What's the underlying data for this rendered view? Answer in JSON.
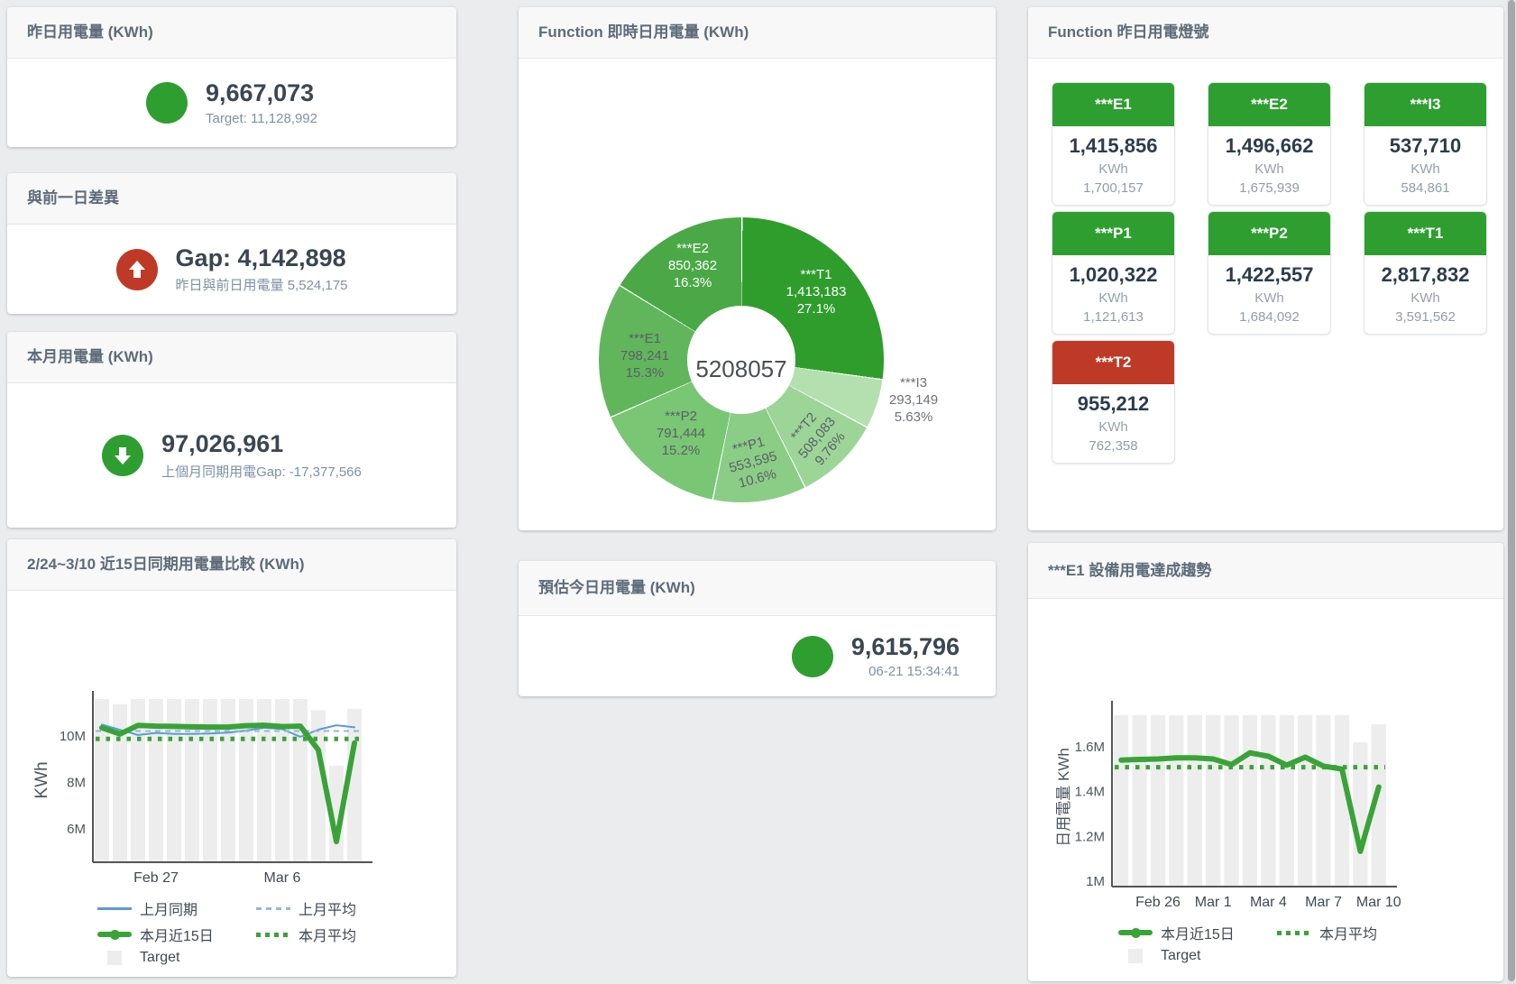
{
  "colors": {
    "green": "#2f9e31",
    "red": "#bf3a26",
    "line_green": "#3aa338",
    "line_blue": "#5b9bd5",
    "line_blue_light": "#8fb8dc",
    "target_bar": "#ededed"
  },
  "cards": {
    "yesterday": {
      "title": "昨日用電量 (KWh)",
      "value": "9,667,073",
      "sub": "Target: 11,128,992",
      "indicator": "green-circle"
    },
    "gap": {
      "title": "與前一日差異",
      "value": "Gap: 4,142,898",
      "sub": "昨日與前日用電量 5,524,175",
      "indicator": "red-up-arrow"
    },
    "month": {
      "title": "本月用電量 (KWh)",
      "value": "97,026,961",
      "sub": "上個月同期用電Gap: -17,377,566",
      "indicator": "green-down-arrow"
    },
    "realtime": {
      "title": "Function 即時日用電量 (KWh)"
    },
    "lamp": {
      "title": "Function 昨日用電燈號",
      "tiles": [
        {
          "name": "***E1",
          "value": "1,415,856",
          "unit": "KWh",
          "prev": "1,700,157",
          "status": "green"
        },
        {
          "name": "***E2",
          "value": "1,496,662",
          "unit": "KWh",
          "prev": "1,675,939",
          "status": "green"
        },
        {
          "name": "***I3",
          "value": "537,710",
          "unit": "KWh",
          "prev": "584,861",
          "status": "green"
        },
        {
          "name": "***P1",
          "value": "1,020,322",
          "unit": "KWh",
          "prev": "1,121,613",
          "status": "green"
        },
        {
          "name": "***P2",
          "value": "1,422,557",
          "unit": "KWh",
          "prev": "1,684,092",
          "status": "green"
        },
        {
          "name": "***T1",
          "value": "2,817,832",
          "unit": "KWh",
          "prev": "3,591,562",
          "status": "green"
        },
        {
          "name": "***T2",
          "value": "955,212",
          "unit": "KWh",
          "prev": "762,358",
          "status": "red"
        }
      ]
    },
    "estimate": {
      "title": "預估今日用電量 (KWh)",
      "value": "9,615,796",
      "sub": "06-21 15:34:41",
      "indicator": "green-circle"
    }
  },
  "chart_data": [
    {
      "type": "pie",
      "title": "Function 即時日用電量 (KWh)",
      "center_total": "5208057",
      "legend_position": "none",
      "slices": [
        {
          "name": "***T1",
          "value": 1413183,
          "value_label": "1,413,183",
          "pct": "27.1%",
          "color": "#2f9d2b",
          "label_color": "#ffffff"
        },
        {
          "name": "***I3",
          "value": 293149,
          "value_label": "293,149",
          "pct": "5.63%",
          "color": "#b4dfae",
          "label_color": "#6d7278"
        },
        {
          "name": "***T2",
          "value": 508083,
          "value_label": "508,083",
          "pct": "9.76%",
          "color": "#9dd598",
          "label_color": "#5a6066"
        },
        {
          "name": "***P1",
          "value": 553595,
          "value_label": "553,595",
          "pct": "10.6%",
          "color": "#8bcd86",
          "label_color": "#5a6066"
        },
        {
          "name": "***P2",
          "value": 791444,
          "value_label": "791,444",
          "pct": "15.2%",
          "color": "#79c674",
          "label_color": "#5a6066"
        },
        {
          "name": "***E1",
          "value": 798241,
          "value_label": "798,241",
          "pct": "15.3%",
          "color": "#61b65c",
          "label_color": "#5a6066"
        },
        {
          "name": "***E2",
          "value": 850362,
          "value_label": "850,362",
          "pct": "16.3%",
          "color": "#4aa946",
          "label_color": "#ffffff"
        }
      ]
    },
    {
      "type": "line+bar",
      "title": "2/24~3/10 近15日同期用電量比較 (KWh)",
      "ylabel": "KWh",
      "x_days": 15,
      "x_ticks": [
        {
          "index": 3,
          "label": "Feb 27"
        },
        {
          "index": 10,
          "label": "Mar 6"
        }
      ],
      "y_ticks": [
        {
          "value": 6,
          "label": "6M"
        },
        {
          "value": 8,
          "label": "8M"
        },
        {
          "value": 10,
          "label": "10M"
        }
      ],
      "ylim": [
        4.56,
        11.64
      ],
      "grid": false,
      "legend_position": "bottom",
      "target_label": "Target",
      "target_bars": [
        11.6,
        11.38,
        11.6,
        11.6,
        11.6,
        11.6,
        11.6,
        11.6,
        11.6,
        11.6,
        11.6,
        11.6,
        11.12,
        8.72,
        11.18
      ],
      "series": [
        {
          "name": "上月同期",
          "style": "thin",
          "color": "#5b9bd5",
          "values": [
            10.5,
            10.27,
            10.05,
            10.14,
            10.09,
            10.09,
            10.11,
            10.15,
            10.24,
            10.36,
            10.3,
            9.97,
            10.28,
            10.47,
            10.38
          ]
        },
        {
          "name": "上月平均",
          "style": "dashed",
          "color": "#8fb8dc",
          "avg": 10.22
        },
        {
          "name": "本月近15日",
          "style": "thick",
          "color": "#3aa338",
          "values": [
            10.36,
            10.09,
            10.46,
            10.43,
            10.42,
            10.4,
            10.39,
            10.39,
            10.45,
            10.47,
            10.41,
            10.43,
            9.4,
            5.45,
            9.7
          ]
        },
        {
          "name": "本月平均",
          "style": "dotted",
          "color": "#3aa338",
          "avg": 9.88
        }
      ]
    },
    {
      "type": "line+bar",
      "title": "***E1 設備用電達成趨勢",
      "ylabel": "日用電量 KWh",
      "x_days": 15,
      "x_ticks": [
        {
          "index": 2,
          "label": "Feb 26"
        },
        {
          "index": 5,
          "label": "Mar 1"
        },
        {
          "index": 8,
          "label": "Mar 4"
        },
        {
          "index": 11,
          "label": "Mar 7"
        },
        {
          "index": 14,
          "label": "Mar 10"
        }
      ],
      "y_ticks": [
        {
          "value": 1,
          "label": "1M"
        },
        {
          "value": 1.2,
          "label": "1.2M"
        },
        {
          "value": 1.4,
          "label": "1.4M"
        },
        {
          "value": 1.6,
          "label": "1.6M"
        }
      ],
      "ylim": [
        0.976,
        1.772
      ],
      "grid": false,
      "legend_position": "bottom",
      "target_label": "Target",
      "target_bars": [
        1.74,
        1.74,
        1.74,
        1.74,
        1.74,
        1.74,
        1.74,
        1.74,
        1.74,
        1.74,
        1.74,
        1.74,
        1.74,
        1.62,
        1.7
      ],
      "series": [
        {
          "name": "本月近15日",
          "style": "thick",
          "color": "#3aa338",
          "values": [
            1.54,
            1.543,
            1.545,
            1.55,
            1.55,
            1.545,
            1.52,
            1.572,
            1.557,
            1.517,
            1.553,
            1.513,
            1.5,
            1.133,
            1.42
          ]
        },
        {
          "name": "本月平均",
          "style": "dotted",
          "color": "#3aa338",
          "avg": 1.508
        }
      ]
    }
  ]
}
